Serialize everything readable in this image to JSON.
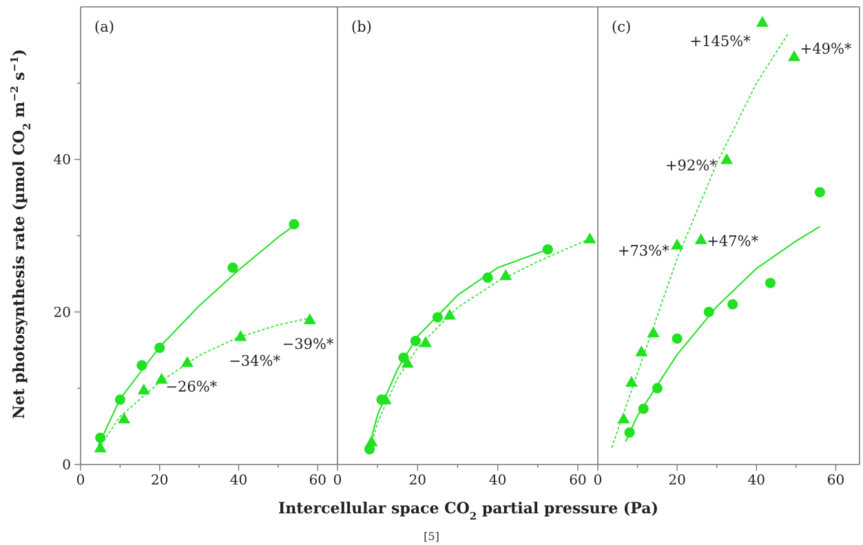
{
  "figure": {
    "caption": "[5]",
    "xlabel": "Intercellular space CO",
    "xlabel_sub": "2",
    "xlabel_tail": " partial pressure (Pa)",
    "ylabel": "Net photosynthesis rate (µmol CO",
    "ylabel_sub": "2",
    "ylabel_mid": " m",
    "ylabel_sup1": "−2",
    "ylabel_mid2": " s",
    "ylabel_sup2": "−1",
    "ylabel_tail": ")"
  },
  "colors": {
    "marker": "#22e022",
    "line": "#22e022",
    "axis": "#777777",
    "text": "#222222"
  },
  "chart_data": [
    {
      "type": "scatter",
      "panel_label": "(a)",
      "xlim": [
        0,
        65
      ],
      "ylim": [
        0,
        60
      ],
      "xticks": [
        0,
        20,
        40,
        60
      ],
      "yticks": [
        0,
        20,
        40
      ],
      "grid": false,
      "series": [
        {
          "marker": "circle",
          "fit": "solid",
          "x": [
            5,
            10,
            15.5,
            20,
            38.5,
            54
          ],
          "y": [
            3.5,
            8.5,
            13,
            15.3,
            25.8,
            31.5
          ],
          "curve_x": [
            4.5,
            10,
            20,
            30,
            40,
            50,
            54.5
          ],
          "curve_y": [
            2.5,
            8.6,
            15.4,
            20.8,
            25.5,
            29.8,
            31.5
          ]
        },
        {
          "marker": "triangle",
          "fit": "dashed",
          "x": [
            5,
            11,
            16,
            20.5,
            27,
            40.5,
            58
          ],
          "y": [
            2.2,
            6,
            9.8,
            11.2,
            13.4,
            16.8,
            19
          ],
          "curve_x": [
            4.5,
            10,
            20,
            30,
            40,
            50,
            58
          ],
          "curve_y": [
            2,
            6.3,
            10.8,
            14.3,
            16.7,
            18.3,
            19.2
          ]
        }
      ],
      "annotations": [
        {
          "text": "−26%*",
          "x": 21.5,
          "y": 10.2,
          "anchor": "start"
        },
        {
          "text": "−34%*",
          "x": 37.5,
          "y": 13.6,
          "anchor": "start"
        },
        {
          "text": "−39%*",
          "x": 51,
          "y": 15.8,
          "anchor": "start"
        }
      ]
    },
    {
      "type": "scatter",
      "panel_label": "(b)",
      "xlim": [
        0,
        65
      ],
      "ylim": [
        0,
        60
      ],
      "xticks": [
        0,
        20,
        40,
        60
      ],
      "yticks": [],
      "grid": false,
      "series": [
        {
          "marker": "circle",
          "fit": "solid",
          "x": [
            8,
            11,
            16.5,
            19.5,
            25,
            37.5,
            52.5
          ],
          "y": [
            2,
            8.5,
            14,
            16.2,
            19.3,
            24.5,
            28.2
          ],
          "curve_x": [
            7.5,
            10,
            15,
            20,
            30,
            40,
            52.5
          ],
          "curve_y": [
            1.5,
            6.5,
            12.5,
            16.8,
            22.2,
            25.8,
            28.2
          ]
        },
        {
          "marker": "triangle",
          "fit": "dashed",
          "x": [
            8.5,
            12,
            17.5,
            22,
            28,
            42,
            63
          ],
          "y": [
            3,
            8.5,
            13.3,
            16,
            19.6,
            24.8,
            29.6
          ],
          "curve_x": [
            8,
            10,
            15,
            20,
            30,
            40,
            50,
            63
          ],
          "curve_y": [
            1.8,
            5.5,
            11.3,
            15.3,
            20.6,
            24,
            26.6,
            29.6
          ]
        }
      ],
      "annotations": []
    },
    {
      "type": "scatter",
      "panel_label": "(c)",
      "xlim": [
        0,
        66
      ],
      "ylim": [
        0,
        60
      ],
      "xticks": [
        0,
        20,
        40,
        60
      ],
      "yticks": [],
      "grid": false,
      "series": [
        {
          "marker": "circle",
          "fit": "solid",
          "x": [
            8,
            11.5,
            15,
            20,
            28,
            34,
            43.5,
            56
          ],
          "y": [
            4.2,
            7.3,
            10,
            16.5,
            20,
            21,
            23.8,
            35.7
          ],
          "curve_x": [
            7,
            10,
            20,
            30,
            40,
            50,
            56
          ],
          "curve_y": [
            3,
            6.4,
            14.4,
            20.7,
            25.7,
            29.3,
            31.2
          ]
        },
        {
          "marker": "triangle",
          "fit": "dashed",
          "x": [
            6.5,
            8.5,
            11,
            14,
            20,
            26,
            32.5,
            41.5,
            49.5
          ],
          "y": [
            6,
            10.8,
            14.8,
            17.3,
            28.8,
            29.5,
            40,
            58,
            53.5
          ],
          "curve_x": [
            3.5,
            10,
            20,
            30,
            40,
            48
          ],
          "curve_y": [
            2.2,
            12,
            27,
            39.5,
            50,
            56.5
          ]
        }
      ],
      "annotations": [
        {
          "text": "+145%*",
          "x": 38.5,
          "y": 55.5,
          "anchor": "end"
        },
        {
          "text": "+49%*",
          "x": 51,
          "y": 54.5,
          "anchor": "start"
        },
        {
          "text": "+92%*",
          "x": 30,
          "y": 39.2,
          "anchor": "end"
        },
        {
          "text": "+73%*",
          "x": 18,
          "y": 28,
          "anchor": "end"
        },
        {
          "text": "+47%*",
          "x": 27.5,
          "y": 29.3,
          "anchor": "start"
        }
      ]
    }
  ]
}
